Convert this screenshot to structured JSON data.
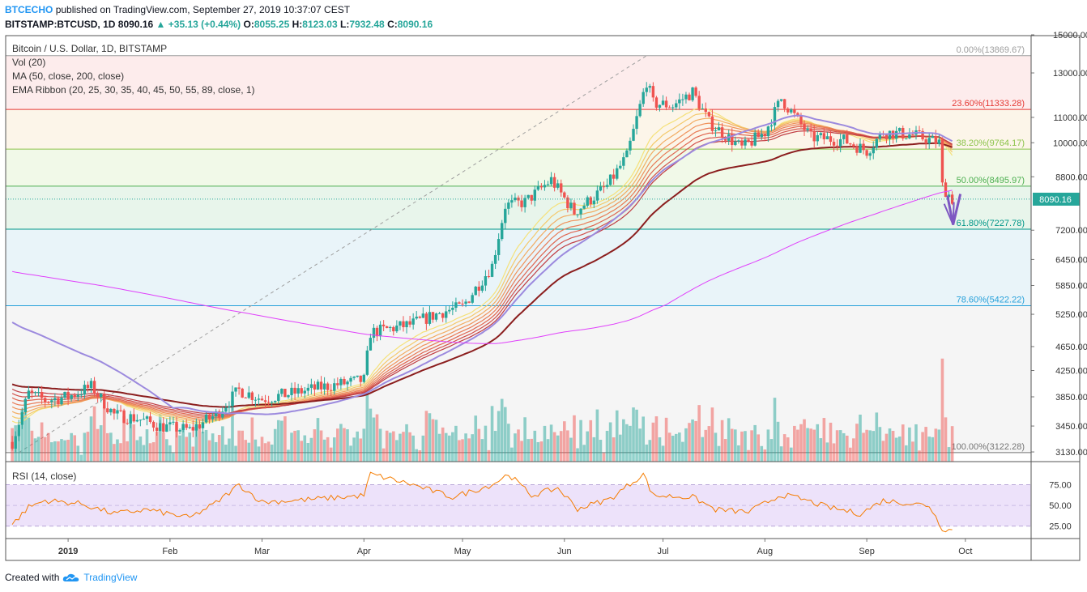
{
  "header": {
    "publisher": "BTCECHO",
    "published_text": "published on TradingView.com, September 27, 2019 10:37:07 CEST",
    "symbol": "BITSTAMP:BTCUSD, 1D",
    "last": "8090.16",
    "change_icon": "triangle-up-icon",
    "change": "+35.13 (+0.44%)",
    "o_label": "O:",
    "o": "8055.25",
    "h_label": "H:",
    "h": "8123.03",
    "l_label": "L:",
    "l": "7932.48",
    "c_label": "C:",
    "c": "8090.16"
  },
  "legend": {
    "title": "Bitcoin / U.S. Dollar, 1D, BITSTAMP",
    "vol": "Vol (20)",
    "ma": "MA (50, close, 200, close)",
    "ema": "EMA Ribbon (20, 25, 30, 35, 40, 45, 50, 55, 89, close, 1)",
    "rsi": "RSI (14, close)"
  },
  "footer": {
    "created_with": "Created with",
    "brand": "TradingView",
    "logo_icon": "tradingview-cloud-icon"
  },
  "colors": {
    "up": "#26a69a",
    "down": "#ef5350",
    "ma50": "#9c8ade",
    "ma200": "#e040fb",
    "rsi": "#f57c00",
    "rsi_band": "#ede2fa",
    "arrow": "#7e57c2"
  },
  "chart_data": {
    "type": "candlestick",
    "price_axis": {
      "labels": [
        "15000.00",
        "13000.00",
        "11000.00",
        "10000.00",
        "8800.00",
        "8090.16",
        "7200.00",
        "6450.00",
        "5850.00",
        "5250.00",
        "4650.00",
        "4250.00",
        "3850.00",
        "3450.00",
        "3130.00"
      ],
      "values": [
        15000,
        13000,
        11000,
        10000,
        8800,
        8090.16,
        7200,
        6450,
        5850,
        5250,
        4650,
        4250,
        3850,
        3450,
        3130
      ],
      "scale": "log",
      "current_price": 8090.16
    },
    "time_axis": {
      "labels": [
        "2019",
        "Feb",
        "Mar",
        "Apr",
        "May",
        "Jun",
        "Jul",
        "Aug",
        "Sep",
        "Oct"
      ]
    },
    "fibonacci_levels": [
      {
        "label": "0.00%(13869.67)",
        "price": 13869.67,
        "color": "#9e9e9e"
      },
      {
        "label": "23.60%(11333.28)",
        "price": 11333.28,
        "color": "#e53935"
      },
      {
        "label": "38.20%(9764.17)",
        "price": 9764.17,
        "color": "#8bc34a"
      },
      {
        "label": "50.00%(8495.97)",
        "price": 8495.97,
        "color": "#4caf50"
      },
      {
        "label": "61.80%(7227.78)",
        "price": 7227.78,
        "color": "#009688"
      },
      {
        "label": "78.60%(5422.22)",
        "price": 5422.22,
        "color": "#26a0da"
      },
      {
        "label": "100.00%(3122.28)",
        "price": 3122.28,
        "color": "#757575"
      }
    ],
    "close_path": [
      [
        "2018-12-15",
        3250
      ],
      [
        "2018-12-20",
        3900
      ],
      [
        "2018-12-25",
        3800
      ],
      [
        "2019-01-01",
        3850
      ],
      [
        "2019-01-08",
        4000
      ],
      [
        "2019-01-15",
        3600
      ],
      [
        "2019-01-22",
        3550
      ],
      [
        "2019-01-29",
        3450
      ],
      [
        "2019-02-07",
        3400
      ],
      [
        "2019-02-15",
        3600
      ],
      [
        "2019-02-22",
        3950
      ],
      [
        "2019-03-01",
        3820
      ],
      [
        "2019-03-10",
        3900
      ],
      [
        "2019-03-20",
        4000
      ],
      [
        "2019-04-01",
        4100
      ],
      [
        "2019-04-03",
        4900
      ],
      [
        "2019-04-15",
        5050
      ],
      [
        "2019-04-25",
        5300
      ],
      [
        "2019-05-01",
        5400
      ],
      [
        "2019-05-10",
        6300
      ],
      [
        "2019-05-14",
        7900
      ],
      [
        "2019-05-20",
        8000
      ],
      [
        "2019-05-28",
        8700
      ],
      [
        "2019-06-04",
        7700
      ],
      [
        "2019-06-14",
        8500
      ],
      [
        "2019-06-20",
        9500
      ],
      [
        "2019-06-26",
        12600
      ],
      [
        "2019-06-28",
        11600
      ],
      [
        "2019-07-04",
        11500
      ],
      [
        "2019-07-10",
        12100
      ],
      [
        "2019-07-15",
        10800
      ],
      [
        "2019-07-25",
        9800
      ],
      [
        "2019-08-01",
        10400
      ],
      [
        "2019-08-06",
        11800
      ],
      [
        "2019-08-15",
        10200
      ],
      [
        "2019-08-25",
        10100
      ],
      [
        "2019-09-01",
        9700
      ],
      [
        "2019-09-06",
        10400
      ],
      [
        "2019-09-15",
        10300
      ],
      [
        "2019-09-23",
        10000
      ],
      [
        "2019-09-24",
        8500
      ],
      [
        "2019-09-27",
        8090
      ]
    ],
    "rsi": {
      "levels": [
        75,
        50,
        25
      ],
      "labels": [
        "75.00",
        "50.00",
        "25.00"
      ],
      "path": [
        [
          "2018-12-15",
          27
        ],
        [
          "2018-12-20",
          48
        ],
        [
          "2018-12-25",
          56
        ],
        [
          "2019-01-05",
          52
        ],
        [
          "2019-01-15",
          40
        ],
        [
          "2019-01-25",
          45
        ],
        [
          "2019-02-07",
          35
        ],
        [
          "2019-02-15",
          53
        ],
        [
          "2019-02-22",
          75
        ],
        [
          "2019-03-01",
          54
        ],
        [
          "2019-03-15",
          57
        ],
        [
          "2019-04-01",
          62
        ],
        [
          "2019-04-03",
          88
        ],
        [
          "2019-04-15",
          76
        ],
        [
          "2019-04-28",
          60
        ],
        [
          "2019-05-10",
          75
        ],
        [
          "2019-05-15",
          88
        ],
        [
          "2019-05-22",
          62
        ],
        [
          "2019-05-30",
          71
        ],
        [
          "2019-06-05",
          46
        ],
        [
          "2019-06-15",
          58
        ],
        [
          "2019-06-25",
          88
        ],
        [
          "2019-06-28",
          62
        ],
        [
          "2019-07-10",
          60
        ],
        [
          "2019-07-17",
          45
        ],
        [
          "2019-07-27",
          42
        ],
        [
          "2019-08-06",
          63
        ],
        [
          "2019-08-12",
          58
        ],
        [
          "2019-08-20",
          48
        ],
        [
          "2019-08-30",
          40
        ],
        [
          "2019-09-06",
          56
        ],
        [
          "2019-09-20",
          50
        ],
        [
          "2019-09-24",
          22
        ],
        [
          "2019-09-27",
          20
        ]
      ]
    },
    "annotation": {
      "type": "arrow",
      "icon": "down-arrow-icon"
    }
  }
}
